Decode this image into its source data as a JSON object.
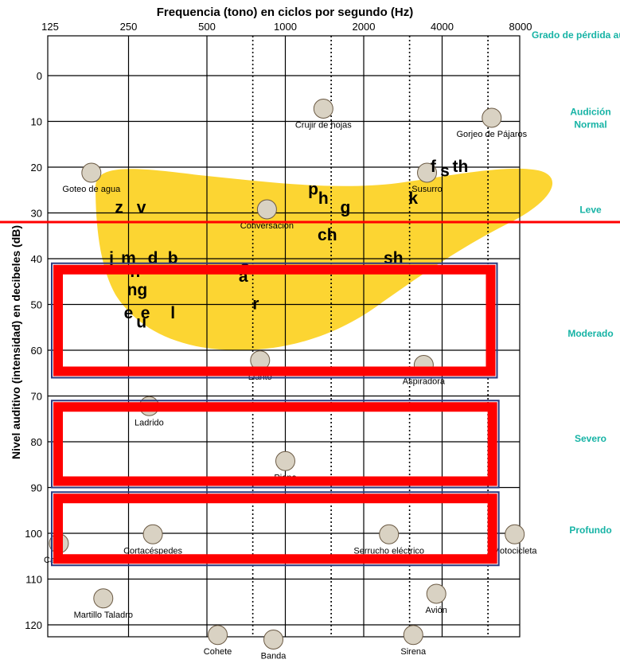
{
  "chart_data": {
    "type": "scatter",
    "title": "",
    "xlabel": "Frequencia (tono) en ciclos por segundo (Hz)",
    "ylabel": "Nivel auditivo (intensidad) en decibeles (dB)",
    "x_ticks": [
      "125",
      "250",
      "500",
      "1000",
      "2000",
      "4000",
      "8000"
    ],
    "x_tick_values": [
      125,
      250,
      500,
      1000,
      2000,
      4000,
      8000
    ],
    "x_scale": "log2",
    "dotted_x": [
      750,
      1500,
      3000,
      6000
    ],
    "y_ticks": [
      0,
      10,
      20,
      30,
      40,
      50,
      60,
      70,
      80,
      90,
      100,
      110,
      120
    ],
    "ylim": [
      -10,
      125
    ],
    "grid": true,
    "header_text": "Grado de pérdida auditiva",
    "degrees": [
      {
        "label": "Audición Normal",
        "db": 10
      },
      {
        "label": "Leve",
        "db": 30
      },
      {
        "label": "Moderado",
        "db": 57
      },
      {
        "label": "Severo",
        "db": 80
      },
      {
        "label": "Profundo",
        "db": 100
      }
    ],
    "phonemes": [
      {
        "text": "z",
        "x": 230,
        "y": 30
      },
      {
        "text": "v",
        "x": 280,
        "y": 30
      },
      {
        "text": "j",
        "x": 215,
        "y": 41
      },
      {
        "text": "m",
        "x": 250,
        "y": 41
      },
      {
        "text": "d",
        "x": 310,
        "y": 41
      },
      {
        "text": "b",
        "x": 370,
        "y": 41
      },
      {
        "text": "n",
        "x": 265,
        "y": 44
      },
      {
        "text": "ng",
        "x": 270,
        "y": 48
      },
      {
        "text": "e",
        "x": 250,
        "y": 53
      },
      {
        "text": "e",
        "x": 290,
        "y": 53
      },
      {
        "text": "u",
        "x": 280,
        "y": 55
      },
      {
        "text": "l",
        "x": 370,
        "y": 53
      },
      {
        "text": "o",
        "x": 700,
        "y": 43
      },
      {
        "text": "a",
        "x": 690,
        "y": 45
      },
      {
        "text": "r",
        "x": 770,
        "y": 51
      },
      {
        "text": "p",
        "x": 1280,
        "y": 26
      },
      {
        "text": "h",
        "x": 1400,
        "y": 28
      },
      {
        "text": "g",
        "x": 1700,
        "y": 30
      },
      {
        "text": "ch",
        "x": 1450,
        "y": 36
      },
      {
        "text": "sh",
        "x": 2600,
        "y": 41
      },
      {
        "text": "k",
        "x": 3100,
        "y": 28
      },
      {
        "text": "f",
        "x": 3700,
        "y": 21
      },
      {
        "text": "s",
        "x": 4100,
        "y": 22
      },
      {
        "text": "th",
        "x": 4700,
        "y": 21
      }
    ],
    "sounds": [
      {
        "label": "Goteo de agua",
        "x": 180,
        "y": 24
      },
      {
        "label": "Crujir de hojas",
        "x": 1400,
        "y": 10
      },
      {
        "label": "Gorjeo de Pájaros",
        "x": 6200,
        "y": 12
      },
      {
        "label": "Susurro",
        "x": 3500,
        "y": 24
      },
      {
        "label": "Conversación",
        "x": 850,
        "y": 32
      },
      {
        "label": "Llanto",
        "x": 800,
        "y": 65
      },
      {
        "label": "Aspiradora",
        "x": 3400,
        "y": 66
      },
      {
        "label": "Ladrido",
        "x": 300,
        "y": 75
      },
      {
        "label": "Piano",
        "x": 1000,
        "y": 87
      },
      {
        "label": "Camión",
        "x": 135,
        "y": 105
      },
      {
        "label": "Cortacéspedes",
        "x": 310,
        "y": 103
      },
      {
        "label": "Serrucho eléctrico",
        "x": 2500,
        "y": 103
      },
      {
        "label": "Motocicleta",
        "x": 7600,
        "y": 103
      },
      {
        "label": "Martillo Taladro",
        "x": 200,
        "y": 117
      },
      {
        "label": "Cohete",
        "x": 550,
        "y": 125
      },
      {
        "label": "Banda",
        "x": 900,
        "y": 126
      },
      {
        "label": "Avión",
        "x": 3800,
        "y": 116
      },
      {
        "label": "Sirena",
        "x": 3100,
        "y": 125
      }
    ],
    "highlight_line_db": 32,
    "highlight_boxes": [
      {
        "db_top": 41,
        "db_bottom": 66,
        "hz_left": 125,
        "hz_right": 6500
      },
      {
        "db_top": 71,
        "db_bottom": 90,
        "hz_left": 125,
        "hz_right": 6600
      },
      {
        "db_top": 91,
        "db_bottom": 107,
        "hz_left": 125,
        "hz_right": 6600
      }
    ],
    "colors": {
      "banana": "#fcd532",
      "highlight": "#ff0000",
      "degree_text": "#16b3a5",
      "box_inner_border": "#2b3a80"
    }
  }
}
